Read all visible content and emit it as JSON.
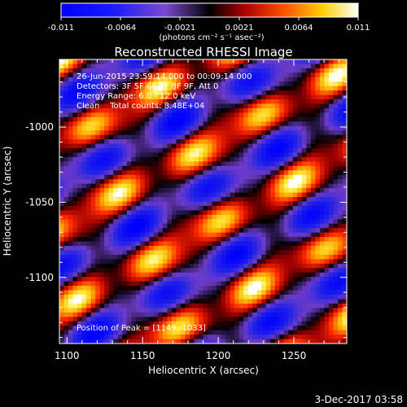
{
  "chart_data": {
    "type": "heatmap",
    "title": "Reconstructed RHESSI Image",
    "xlabel": "Heliocentric X (arcsec)",
    "ylabel": "Heliocentric Y (arcsec)",
    "xlim": [
      1095,
      1285
    ],
    "ylim": [
      -1144,
      -955
    ],
    "x_ticks": [
      1100,
      1150,
      1200,
      1250
    ],
    "y_ticks": [
      -1000,
      -1050,
      -1100
    ],
    "colorbar": {
      "range": [
        -0.011,
        0.011
      ],
      "ticks": [
        "-0.011",
        "-0.0064",
        "-0.0021",
        "0.0021",
        "0.0064",
        "0.011"
      ],
      "unit_label": "(photons cm⁻² s⁻¹ asec⁻²)",
      "colormap": "blue-white-red"
    },
    "annotations": [
      "26-Jun-2015 23:59:14.000 to 00:09:14.000",
      "Detectors: 3F 5F 6F 7F 8F 9F, Att 0",
      "Energy Range: 6.0 - 12.0 keV",
      "Clean    Total counts: 8.48E+04"
    ],
    "peak_label": "Position of Peak = [1149,-1033]",
    "peak": {
      "x": 1149,
      "y": -1033
    },
    "pattern": "diagonal fringe stripes (lower-left to upper-right), alternating bright yellow/red maxima and dark blue minima"
  },
  "footer": {
    "date": "3-Dec-2017 03:58"
  },
  "colors": {
    "background": "#000000",
    "text": "#ffffff",
    "axes": "#ffffff"
  }
}
